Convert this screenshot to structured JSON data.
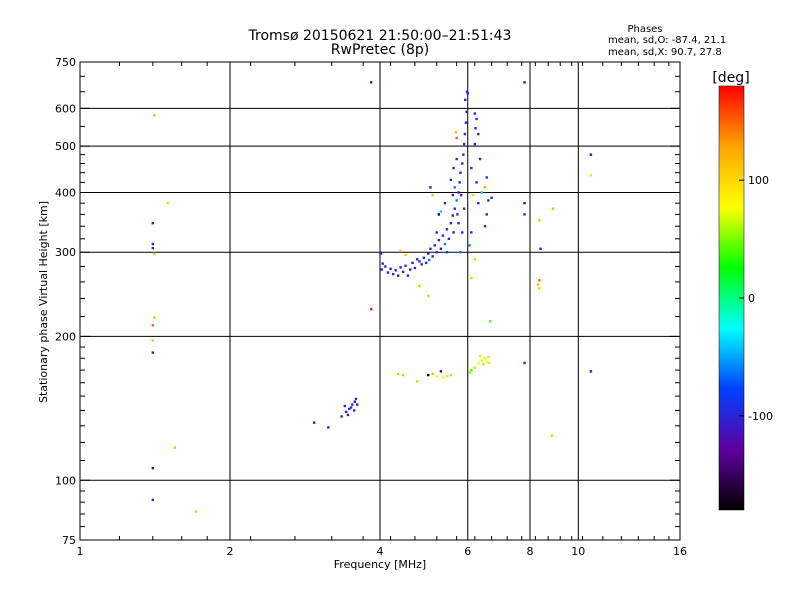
{
  "chart_data": {
    "type": "scatter",
    "title": "Tromsø 20150621 21:50:00–21:51:43",
    "subtitle": "RwPretec (8p)",
    "xlabel": "Frequency [MHz]",
    "ylabel": "Stationary phase Virtual Height [km]",
    "xscale": "log",
    "yscale": "log",
    "xlim": [
      1,
      16
    ],
    "ylim": [
      75,
      750
    ],
    "xticks": [
      1,
      2,
      4,
      6,
      8,
      10,
      16
    ],
    "yticks": [
      75,
      100,
      200,
      300,
      400,
      500,
      600,
      750
    ],
    "grid": true,
    "stats_box": {
      "title": "Phases",
      "line_o": "mean, sd,O: -87.4, 21.1",
      "line_x": "mean, sd,X: 90.7, 27.8"
    },
    "colorbar": {
      "title": "[deg]",
      "range": [
        -180,
        180
      ],
      "ticks": [
        100,
        0,
        -100
      ],
      "colors": [
        "#ff0000",
        "#ffa500",
        "#ffff00",
        "#00ff00",
        "#00ffff",
        "#0040ff",
        "#6000a0",
        "#000000"
      ]
    },
    "points": [
      {
        "x": 1.41,
        "y": 580,
        "p": 120
      },
      {
        "x": 1.5,
        "y": 380,
        "p": 100
      },
      {
        "x": 1.4,
        "y": 345,
        "p": -100
      },
      {
        "x": 1.4,
        "y": 312,
        "p": -110
      },
      {
        "x": 1.4,
        "y": 306,
        "p": -100
      },
      {
        "x": 1.41,
        "y": 298,
        "p": 120
      },
      {
        "x": 1.41,
        "y": 219,
        "p": 120
      },
      {
        "x": 1.4,
        "y": 211,
        "p": 150
      },
      {
        "x": 1.4,
        "y": 196,
        "p": 110
      },
      {
        "x": 1.4,
        "y": 185,
        "p": -100
      },
      {
        "x": 1.55,
        "y": 117,
        "p": 120
      },
      {
        "x": 1.4,
        "y": 106,
        "p": -120
      },
      {
        "x": 1.4,
        "y": 91,
        "p": -100
      },
      {
        "x": 1.71,
        "y": 86,
        "p": 110
      },
      {
        "x": 3.84,
        "y": 680,
        "p": -110
      },
      {
        "x": 3.84,
        "y": 228,
        "p": 170
      },
      {
        "x": 2.95,
        "y": 132,
        "p": -110
      },
      {
        "x": 3.15,
        "y": 129,
        "p": -100
      },
      {
        "x": 3.35,
        "y": 136,
        "p": -100
      },
      {
        "x": 3.42,
        "y": 139,
        "p": -110
      },
      {
        "x": 3.47,
        "y": 141,
        "p": -100
      },
      {
        "x": 3.52,
        "y": 144,
        "p": -100
      },
      {
        "x": 3.56,
        "y": 146,
        "p": -120
      },
      {
        "x": 3.5,
        "y": 142,
        "p": -90
      },
      {
        "x": 3.55,
        "y": 140,
        "p": -100
      },
      {
        "x": 3.6,
        "y": 144,
        "p": -100
      },
      {
        "x": 3.45,
        "y": 137,
        "p": -110
      },
      {
        "x": 3.58,
        "y": 148,
        "p": -100
      },
      {
        "x": 3.4,
        "y": 143,
        "p": -90
      },
      {
        "x": 4.02,
        "y": 298,
        "p": -100
      },
      {
        "x": 4.05,
        "y": 284,
        "p": -110
      },
      {
        "x": 4.03,
        "y": 276,
        "p": -100
      },
      {
        "x": 4.1,
        "y": 280,
        "p": -90
      },
      {
        "x": 4.15,
        "y": 272,
        "p": -100
      },
      {
        "x": 4.2,
        "y": 277,
        "p": -110
      },
      {
        "x": 4.25,
        "y": 270,
        "p": -100
      },
      {
        "x": 4.3,
        "y": 275,
        "p": -90
      },
      {
        "x": 4.35,
        "y": 268,
        "p": -100
      },
      {
        "x": 4.4,
        "y": 279,
        "p": -110
      },
      {
        "x": 4.45,
        "y": 273,
        "p": -100
      },
      {
        "x": 4.5,
        "y": 281,
        "p": -90
      },
      {
        "x": 4.6,
        "y": 276,
        "p": -100
      },
      {
        "x": 4.65,
        "y": 285,
        "p": -110
      },
      {
        "x": 4.4,
        "y": 302,
        "p": 110
      },
      {
        "x": 4.5,
        "y": 296,
        "p": 100
      },
      {
        "x": 4.55,
        "y": 268,
        "p": -100
      },
      {
        "x": 4.7,
        "y": 278,
        "p": -100
      },
      {
        "x": 4.75,
        "y": 290,
        "p": -90
      },
      {
        "x": 4.8,
        "y": 287,
        "p": -100
      },
      {
        "x": 4.85,
        "y": 283,
        "p": -110
      },
      {
        "x": 4.9,
        "y": 292,
        "p": -100
      },
      {
        "x": 4.95,
        "y": 285,
        "p": -90
      },
      {
        "x": 5.0,
        "y": 298,
        "p": -100
      },
      {
        "x": 5.02,
        "y": 289,
        "p": -60
      },
      {
        "x": 5.05,
        "y": 305,
        "p": -100
      },
      {
        "x": 5.1,
        "y": 294,
        "p": -110
      },
      {
        "x": 5.15,
        "y": 310,
        "p": -100
      },
      {
        "x": 5.2,
        "y": 300,
        "p": -90
      },
      {
        "x": 5.25,
        "y": 318,
        "p": -100
      },
      {
        "x": 5.3,
        "y": 305,
        "p": -110
      },
      {
        "x": 5.35,
        "y": 325,
        "p": -100
      },
      {
        "x": 5.4,
        "y": 312,
        "p": -60
      },
      {
        "x": 5.45,
        "y": 335,
        "p": -100
      },
      {
        "x": 5.5,
        "y": 320,
        "p": -100
      },
      {
        "x": 5.55,
        "y": 345,
        "p": -90
      },
      {
        "x": 5.6,
        "y": 358,
        "p": -100
      },
      {
        "x": 5.62,
        "y": 330,
        "p": -110
      },
      {
        "x": 5.65,
        "y": 370,
        "p": -100
      },
      {
        "x": 5.7,
        "y": 385,
        "p": -60
      },
      {
        "x": 5.72,
        "y": 360,
        "p": -100
      },
      {
        "x": 5.75,
        "y": 400,
        "p": -100
      },
      {
        "x": 5.78,
        "y": 420,
        "p": -90
      },
      {
        "x": 5.8,
        "y": 440,
        "p": -100
      },
      {
        "x": 5.82,
        "y": 395,
        "p": -110
      },
      {
        "x": 5.85,
        "y": 460,
        "p": -100
      },
      {
        "x": 5.88,
        "y": 480,
        "p": -100
      },
      {
        "x": 5.9,
        "y": 505,
        "p": -90
      },
      {
        "x": 5.92,
        "y": 530,
        "p": -100
      },
      {
        "x": 5.95,
        "y": 560,
        "p": -100
      },
      {
        "x": 5.97,
        "y": 590,
        "p": -110
      },
      {
        "x": 5.93,
        "y": 625,
        "p": -100
      },
      {
        "x": 5.98,
        "y": 650,
        "p": -90
      },
      {
        "x": 6.0,
        "y": 645,
        "p": -100
      },
      {
        "x": 5.6,
        "y": 395,
        "p": -100
      },
      {
        "x": 5.65,
        "y": 410,
        "p": -60
      },
      {
        "x": 5.55,
        "y": 425,
        "p": -100
      },
      {
        "x": 5.62,
        "y": 450,
        "p": -90
      },
      {
        "x": 5.7,
        "y": 470,
        "p": -100
      },
      {
        "x": 5.4,
        "y": 380,
        "p": -100
      },
      {
        "x": 5.3,
        "y": 365,
        "p": -40
      },
      {
        "x": 5.75,
        "y": 345,
        "p": -100
      },
      {
        "x": 5.45,
        "y": 300,
        "p": -90
      },
      {
        "x": 5.2,
        "y": 330,
        "p": -100
      },
      {
        "x": 5.7,
        "y": 520,
        "p": 150
      },
      {
        "x": 5.68,
        "y": 535,
        "p": 120
      },
      {
        "x": 5.1,
        "y": 395,
        "p": 120
      },
      {
        "x": 5.25,
        "y": 360,
        "p": -160
      },
      {
        "x": 5.05,
        "y": 410,
        "p": -110
      },
      {
        "x": 5.8,
        "y": 300,
        "p": -60
      },
      {
        "x": 5.85,
        "y": 330,
        "p": -100
      },
      {
        "x": 5.9,
        "y": 370,
        "p": -90
      },
      {
        "x": 6.2,
        "y": 585,
        "p": -100
      },
      {
        "x": 6.25,
        "y": 570,
        "p": -90
      },
      {
        "x": 6.22,
        "y": 545,
        "p": -100
      },
      {
        "x": 6.3,
        "y": 530,
        "p": -110
      },
      {
        "x": 6.2,
        "y": 505,
        "p": -100
      },
      {
        "x": 6.35,
        "y": 470,
        "p": -90
      },
      {
        "x": 6.1,
        "y": 450,
        "p": -100
      },
      {
        "x": 6.25,
        "y": 420,
        "p": -100
      },
      {
        "x": 6.4,
        "y": 400,
        "p": -40
      },
      {
        "x": 6.15,
        "y": 395,
        "p": 100
      },
      {
        "x": 6.3,
        "y": 380,
        "p": -100
      },
      {
        "x": 6.5,
        "y": 410,
        "p": 130
      },
      {
        "x": 6.6,
        "y": 385,
        "p": -100
      },
      {
        "x": 6.7,
        "y": 390,
        "p": -100
      },
      {
        "x": 6.55,
        "y": 360,
        "p": -110
      },
      {
        "x": 6.1,
        "y": 330,
        "p": -100
      },
      {
        "x": 6.05,
        "y": 310,
        "p": -60
      },
      {
        "x": 6.2,
        "y": 290,
        "p": 110
      },
      {
        "x": 6.5,
        "y": 340,
        "p": -100
      },
      {
        "x": 6.55,
        "y": 430,
        "p": -90
      },
      {
        "x": 6.1,
        "y": 265,
        "p": 110
      },
      {
        "x": 4.8,
        "y": 255,
        "p": 110
      },
      {
        "x": 5.0,
        "y": 243,
        "p": 110
      },
      {
        "x": 6.65,
        "y": 215,
        "p": 40
      },
      {
        "x": 4.35,
        "y": 167,
        "p": 110
      },
      {
        "x": 4.45,
        "y": 166,
        "p": 110
      },
      {
        "x": 4.75,
        "y": 161,
        "p": 110
      },
      {
        "x": 5.0,
        "y": 166,
        "p": -180
      },
      {
        "x": 5.1,
        "y": 167,
        "p": 120
      },
      {
        "x": 5.2,
        "y": 165,
        "p": 70
      },
      {
        "x": 5.3,
        "y": 169,
        "p": -150
      },
      {
        "x": 5.35,
        "y": 164,
        "p": 80
      },
      {
        "x": 5.45,
        "y": 165,
        "p": 70
      },
      {
        "x": 5.55,
        "y": 166,
        "p": 60
      },
      {
        "x": 6.1,
        "y": 170,
        "p": 40
      },
      {
        "x": 6.2,
        "y": 172,
        "p": 60
      },
      {
        "x": 6.3,
        "y": 176,
        "p": 80
      },
      {
        "x": 6.4,
        "y": 178,
        "p": 70
      },
      {
        "x": 6.45,
        "y": 175,
        "p": 60
      },
      {
        "x": 6.5,
        "y": 180,
        "p": 70
      },
      {
        "x": 6.55,
        "y": 177,
        "p": 80
      },
      {
        "x": 6.6,
        "y": 181,
        "p": 60
      },
      {
        "x": 6.62,
        "y": 176,
        "p": 70
      },
      {
        "x": 6.35,
        "y": 182,
        "p": 90
      },
      {
        "x": 6.05,
        "y": 168,
        "p": 50
      },
      {
        "x": 7.8,
        "y": 680,
        "p": -110
      },
      {
        "x": 7.8,
        "y": 380,
        "p": -120
      },
      {
        "x": 7.8,
        "y": 360,
        "p": -100
      },
      {
        "x": 8.35,
        "y": 350,
        "p": 110
      },
      {
        "x": 8.4,
        "y": 305,
        "p": -100
      },
      {
        "x": 8.35,
        "y": 262,
        "p": 150
      },
      {
        "x": 8.3,
        "y": 257,
        "p": 120
      },
      {
        "x": 8.35,
        "y": 252,
        "p": 110
      },
      {
        "x": 7.8,
        "y": 176,
        "p": -100
      },
      {
        "x": 8.9,
        "y": 370,
        "p": 120
      },
      {
        "x": 8.85,
        "y": 124,
        "p": 110
      },
      {
        "x": 10.6,
        "y": 480,
        "p": -110
      },
      {
        "x": 10.6,
        "y": 435,
        "p": 90
      },
      {
        "x": 10.6,
        "y": 169,
        "p": -100
      }
    ]
  }
}
